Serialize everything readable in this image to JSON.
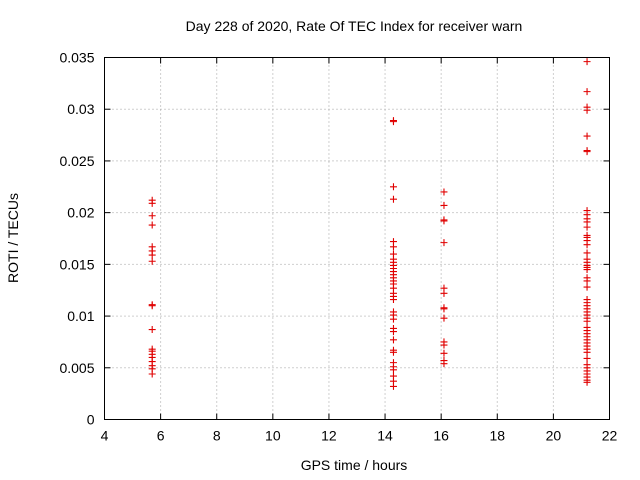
{
  "chart_data": {
    "type": "scatter",
    "title": "Day 228 of 2020, Rate Of TEC Index for receiver warn",
    "xlabel": "GPS time / hours",
    "ylabel": "ROTI / TECUs",
    "xlim": [
      4,
      22
    ],
    "ylim": [
      0,
      0.035
    ],
    "xticks": [
      "4",
      "6",
      "8",
      "10",
      "12",
      "14",
      "16",
      "18",
      "20",
      "22"
    ],
    "yticks": [
      "0",
      "0.005",
      "0.01",
      "0.015",
      "0.02",
      "0.025",
      "0.03",
      "0.035"
    ],
    "grid": true,
    "marker": "plus",
    "color": "#e00000",
    "series": [
      {
        "name": "ROTI",
        "points": [
          [
            5.7,
            0.0212
          ],
          [
            5.7,
            0.0209
          ],
          [
            5.7,
            0.0197
          ],
          [
            5.7,
            0.0188
          ],
          [
            5.7,
            0.0167
          ],
          [
            5.7,
            0.0163
          ],
          [
            5.7,
            0.0159
          ],
          [
            5.7,
            0.0153
          ],
          [
            5.7,
            0.0111
          ],
          [
            5.7,
            0.011
          ],
          [
            5.7,
            0.0087
          ],
          [
            5.7,
            0.0068
          ],
          [
            5.7,
            0.0066
          ],
          [
            5.7,
            0.0063
          ],
          [
            5.7,
            0.006
          ],
          [
            5.7,
            0.0056
          ],
          [
            5.7,
            0.0052
          ],
          [
            5.7,
            0.0049
          ],
          [
            5.7,
            0.0044
          ],
          [
            14.3,
            0.0289
          ],
          [
            14.3,
            0.0288
          ],
          [
            14.3,
            0.0225
          ],
          [
            14.3,
            0.0213
          ],
          [
            14.3,
            0.0172
          ],
          [
            14.3,
            0.0167
          ],
          [
            14.3,
            0.016
          ],
          [
            14.3,
            0.0155
          ],
          [
            14.3,
            0.0152
          ],
          [
            14.3,
            0.0149
          ],
          [
            14.3,
            0.0146
          ],
          [
            14.3,
            0.0143
          ],
          [
            14.3,
            0.014
          ],
          [
            14.3,
            0.0137
          ],
          [
            14.3,
            0.0134
          ],
          [
            14.3,
            0.0131
          ],
          [
            14.3,
            0.0127
          ],
          [
            14.3,
            0.0122
          ],
          [
            14.3,
            0.0119
          ],
          [
            14.3,
            0.0116
          ],
          [
            14.3,
            0.0104
          ],
          [
            14.3,
            0.0101
          ],
          [
            14.3,
            0.0097
          ],
          [
            14.3,
            0.0088
          ],
          [
            14.3,
            0.0085
          ],
          [
            14.3,
            0.0077
          ],
          [
            14.3,
            0.0067
          ],
          [
            14.3,
            0.0065
          ],
          [
            14.3,
            0.0055
          ],
          [
            14.3,
            0.0051
          ],
          [
            14.3,
            0.0048
          ],
          [
            14.3,
            0.0042
          ],
          [
            14.3,
            0.0037
          ],
          [
            14.3,
            0.0032
          ],
          [
            16.1,
            0.022
          ],
          [
            16.1,
            0.0207
          ],
          [
            16.1,
            0.0193
          ],
          [
            16.1,
            0.0192
          ],
          [
            16.1,
            0.0171
          ],
          [
            16.1,
            0.0127
          ],
          [
            16.1,
            0.0122
          ],
          [
            16.1,
            0.0108
          ],
          [
            16.1,
            0.0107
          ],
          [
            16.1,
            0.0098
          ],
          [
            16.1,
            0.0075
          ],
          [
            16.1,
            0.0072
          ],
          [
            16.1,
            0.0064
          ],
          [
            16.1,
            0.0057
          ],
          [
            16.1,
            0.0054
          ],
          [
            21.2,
            0.0346
          ],
          [
            21.2,
            0.0317
          ],
          [
            21.2,
            0.0302
          ],
          [
            21.2,
            0.0299
          ],
          [
            21.2,
            0.0274
          ],
          [
            21.2,
            0.026
          ],
          [
            21.2,
            0.0259
          ],
          [
            21.2,
            0.0202
          ],
          [
            21.2,
            0.0198
          ],
          [
            21.2,
            0.0194
          ],
          [
            21.2,
            0.0191
          ],
          [
            21.2,
            0.0186
          ],
          [
            21.2,
            0.0178
          ],
          [
            21.2,
            0.0176
          ],
          [
            21.2,
            0.0173
          ],
          [
            21.2,
            0.0169
          ],
          [
            21.2,
            0.0161
          ],
          [
            21.2,
            0.0155
          ],
          [
            21.2,
            0.0152
          ],
          [
            21.2,
            0.0149
          ],
          [
            21.2,
            0.0147
          ],
          [
            21.2,
            0.0145
          ],
          [
            21.2,
            0.0137
          ],
          [
            21.2,
            0.0134
          ],
          [
            21.2,
            0.0128
          ],
          [
            21.2,
            0.0116
          ],
          [
            21.2,
            0.0113
          ],
          [
            21.2,
            0.011
          ],
          [
            21.2,
            0.0107
          ],
          [
            21.2,
            0.0104
          ],
          [
            21.2,
            0.0101
          ],
          [
            21.2,
            0.0098
          ],
          [
            21.2,
            0.0095
          ],
          [
            21.2,
            0.0089
          ],
          [
            21.2,
            0.0086
          ],
          [
            21.2,
            0.0083
          ],
          [
            21.2,
            0.008
          ],
          [
            21.2,
            0.0077
          ],
          [
            21.2,
            0.0074
          ],
          [
            21.2,
            0.0071
          ],
          [
            21.2,
            0.0068
          ],
          [
            21.2,
            0.0065
          ],
          [
            21.2,
            0.0059
          ],
          [
            21.2,
            0.0053
          ],
          [
            21.2,
            0.005
          ],
          [
            21.2,
            0.0047
          ],
          [
            21.2,
            0.0044
          ],
          [
            21.2,
            0.0041
          ],
          [
            21.2,
            0.0038
          ],
          [
            21.2,
            0.0036
          ]
        ]
      }
    ]
  }
}
